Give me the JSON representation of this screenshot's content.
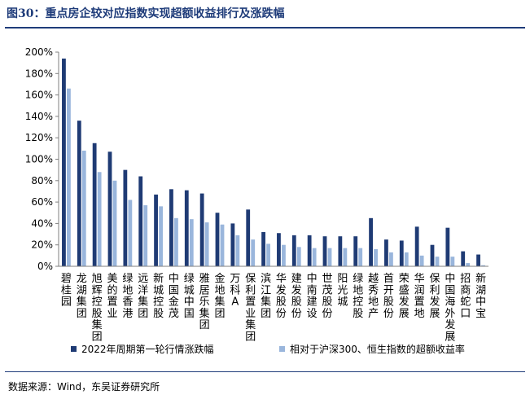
{
  "figure": {
    "title": "图30：重点房企较对应指数实现超额收益排行及涨跌幅",
    "source": "数据来源：Wind，东吴证券研究所"
  },
  "colors": {
    "series1": "#1f3b74",
    "series2": "#9ab6dc",
    "title": "#1f3c7a",
    "axis": "#7f7f7f"
  },
  "chart_data": {
    "type": "bar",
    "title": "",
    "xlabel": "",
    "ylabel": "",
    "ylim": [
      0,
      200
    ],
    "yticks": [
      0,
      20,
      40,
      60,
      80,
      100,
      120,
      140,
      160,
      180,
      200
    ],
    "ytick_suffix": "%",
    "grid": false,
    "legend_position": "bottom",
    "categories": [
      "碧桂园",
      "龙湖集团",
      "旭辉控股集团",
      "美的置业",
      "绿地香港",
      "远洋集团",
      "新城控股",
      "中国金茂",
      "绿城中国",
      "雅居乐集团",
      "金地集团",
      "万科A",
      "保利置业集团",
      "滨江集团",
      "华发股份",
      "建发股份",
      "中南建设",
      "世茂股份",
      "阳光城",
      "绿地控股",
      "越秀地产",
      "首开股份",
      "荣盛发展",
      "华润置地",
      "保利发展",
      "中国海外发展",
      "招商蛇口",
      "新湖中宝"
    ],
    "series": [
      {
        "name": "2022年周期第一轮行情涨跌幅",
        "values": [
          194,
          136,
          115,
          107,
          90,
          84,
          67,
          72,
          71,
          68,
          50,
          40,
          53,
          32,
          31,
          29,
          29,
          28,
          28,
          28,
          45,
          25,
          24,
          37,
          20,
          36,
          14,
          11
        ]
      },
      {
        "name": "相对于沪深300、恒生指数的超额收益率",
        "values": [
          166,
          108,
          88,
          80,
          62,
          57,
          56,
          45,
          44,
          41,
          39,
          29,
          25,
          21,
          20,
          18,
          17,
          17,
          17,
          17,
          16,
          13,
          13,
          10,
          9,
          9,
          3,
          1
        ]
      }
    ]
  }
}
